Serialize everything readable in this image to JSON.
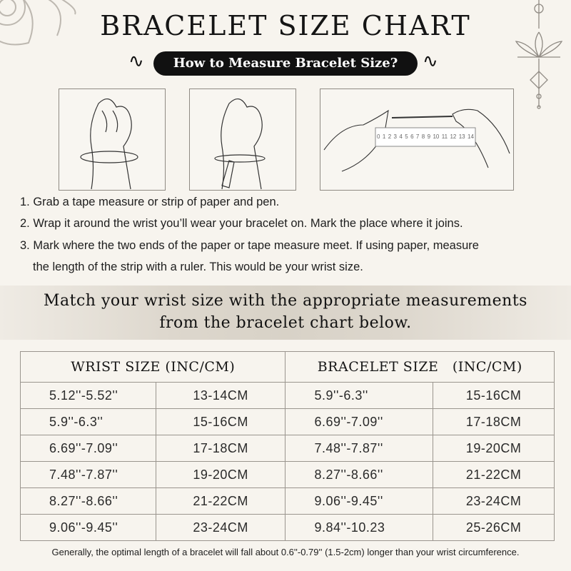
{
  "title": "BRACELET SIZE CHART",
  "subtitle": "How to Measure Bracelet Size?",
  "illustrations": {
    "ruler_labels": [
      "0",
      "1",
      "2",
      "3",
      "4",
      "5",
      "6",
      "7",
      "8",
      "9",
      "10",
      "11",
      "12",
      "13",
      "14"
    ]
  },
  "steps": [
    "1. Grab a tape measure or strip of paper and pen.",
    "2. Wrap it around the wrist you’ll wear your bracelet on. Mark the place where it joins.",
    "3. Mark where the two ends of the paper or tape measure meet. If using paper, measure",
    "the length of the strip with a ruler. This would be your wrist size."
  ],
  "banner": [
    "Match your wrist size with the appropriate measurements",
    "from the bracelet chart below."
  ],
  "table": {
    "headers": [
      "WRIST SIZE (INC/CM)",
      "BRACELET SIZE (INC/CM)"
    ],
    "rows": [
      [
        "5.12''-5.52''",
        "13-14CM",
        "5.9''-6.3''",
        "15-16CM"
      ],
      [
        "5.9''-6.3''",
        "15-16CM",
        "6.69''-7.09''",
        "17-18CM"
      ],
      [
        "6.69''-7.09''",
        "17-18CM",
        "7.48''-7.87''",
        "19-20CM"
      ],
      [
        "7.48''-7.87''",
        "19-20CM",
        "8.27''-8.66''",
        "21-22CM"
      ],
      [
        "8.27''-8.66''",
        "21-22CM",
        "9.06''-9.45''",
        "23-24CM"
      ],
      [
        "9.06''-9.45''",
        "23-24CM",
        "9.84''-10.23",
        "25-26CM"
      ]
    ]
  },
  "footnote": "Generally, the optimal length of a bracelet will fall about 0.6''-0.79'' (1.5-2cm) longer than your wrist circumference."
}
